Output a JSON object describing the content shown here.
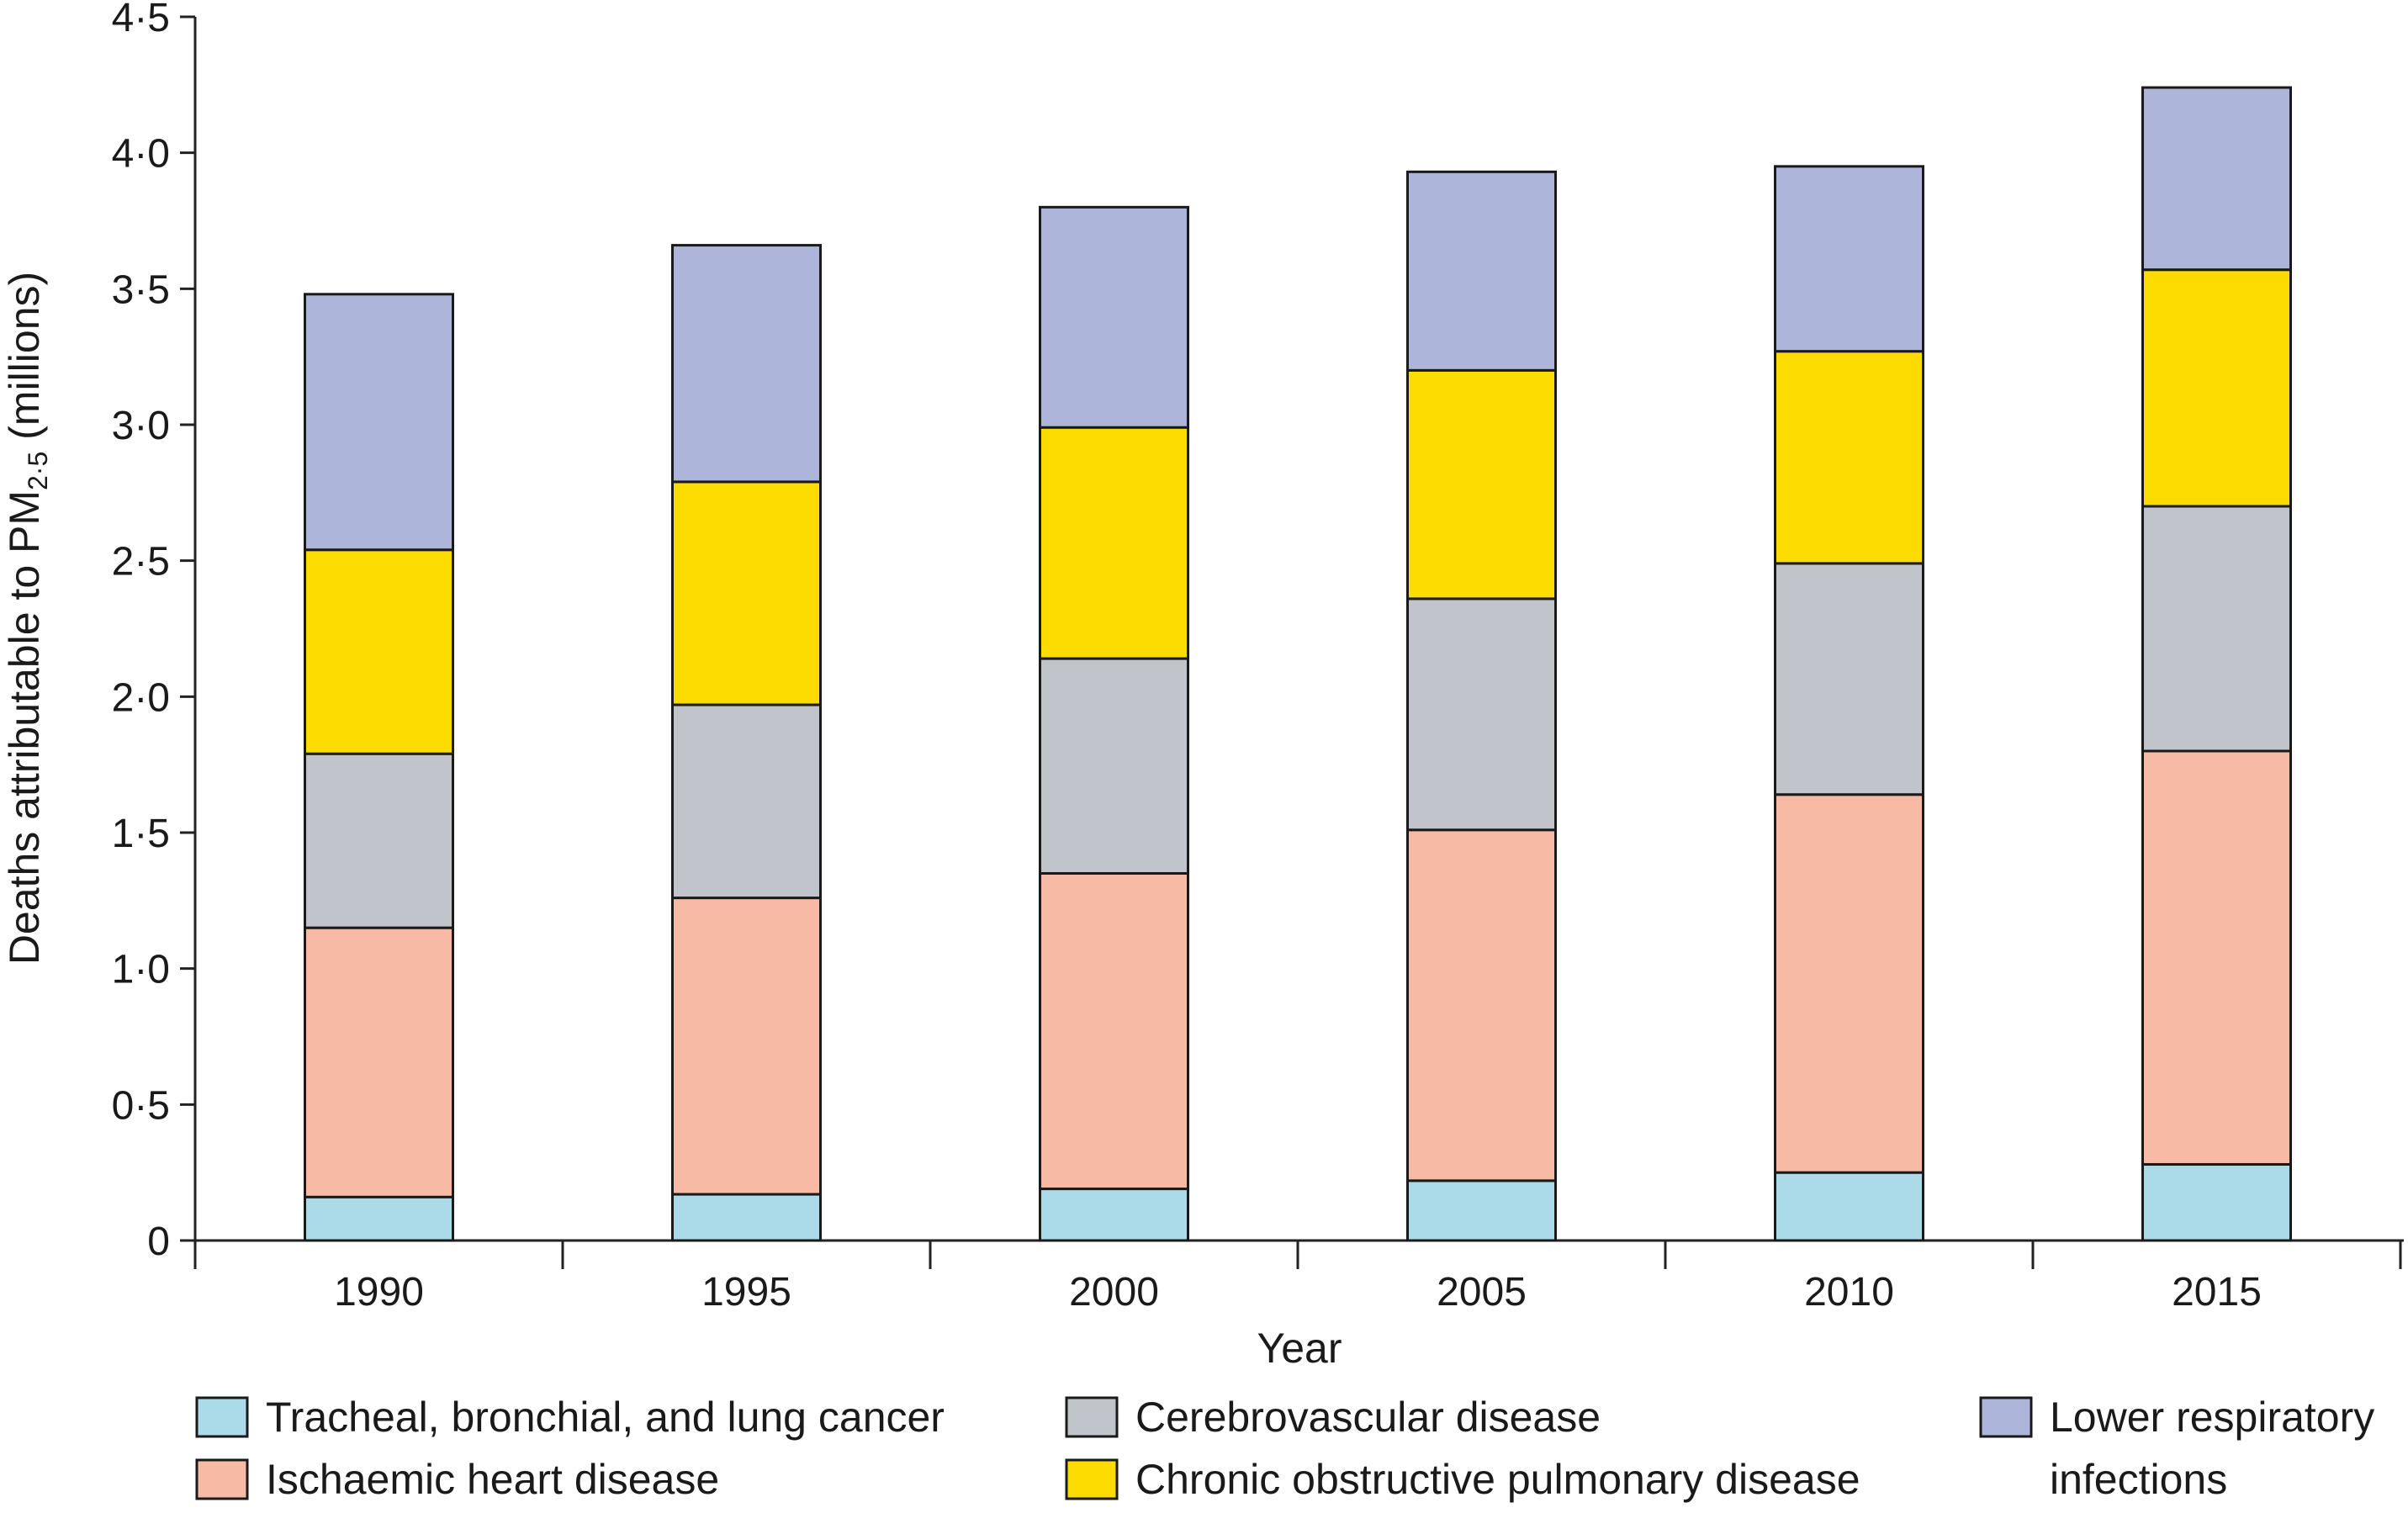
{
  "chart_data": {
    "type": "bar",
    "stacked": true,
    "xlabel": "Year",
    "ylabel_prefix": "Deaths attributable to PM",
    "ylabel_subscript": "2·5",
    "ylabel_suffix": " (millions)",
    "ylim": [
      0,
      4.5
    ],
    "yticks": [
      0,
      0.5,
      1.0,
      1.5,
      2.0,
      2.5,
      3.0,
      3.5,
      4.0,
      4.5
    ],
    "ytick_labels": [
      "0",
      "0·5",
      "1·0",
      "1·5",
      "2·0",
      "2·5",
      "3·0",
      "3·5",
      "4·0",
      "4·5"
    ],
    "categories": [
      "1990",
      "1995",
      "2000",
      "2005",
      "2010",
      "2015"
    ],
    "series": [
      {
        "name": "Tracheal, bronchial, and lung cancer",
        "color": "#abdbe8",
        "values": [
          0.16,
          0.17,
          0.19,
          0.22,
          0.25,
          0.28
        ]
      },
      {
        "name": "Ischaemic heart disease",
        "color": "#f7bba5",
        "values": [
          0.99,
          1.09,
          1.16,
          1.29,
          1.39,
          1.52
        ]
      },
      {
        "name": "Cerebrovascular disease",
        "color": "#c1c4ca",
        "values": [
          0.64,
          0.71,
          0.79,
          0.85,
          0.85,
          0.9
        ]
      },
      {
        "name": "Chronic obstructive pulmonary disease",
        "color": "#fcdc00",
        "values": [
          0.75,
          0.82,
          0.85,
          0.84,
          0.78,
          0.87
        ]
      },
      {
        "name": "Lower respiratory infections",
        "color": "#adb6da",
        "values": [
          0.94,
          0.87,
          0.81,
          0.73,
          0.68,
          0.67
        ]
      }
    ],
    "legend": {
      "placement": "bottom",
      "items": [
        {
          "lines": [
            "Tracheal, bronchial, and lung cancer"
          ],
          "color": "#abdbe8"
        },
        {
          "lines": [
            "Ischaemic heart disease"
          ],
          "color": "#f7bba5"
        },
        {
          "lines": [
            "Cerebrovascular disease"
          ],
          "color": "#c1c4ca"
        },
        {
          "lines": [
            "Chronic obstructive pulmonary disease"
          ],
          "color": "#fcdc00"
        },
        {
          "lines": [
            "Lower respiratory",
            "infections"
          ],
          "color": "#adb6da"
        }
      ]
    }
  }
}
